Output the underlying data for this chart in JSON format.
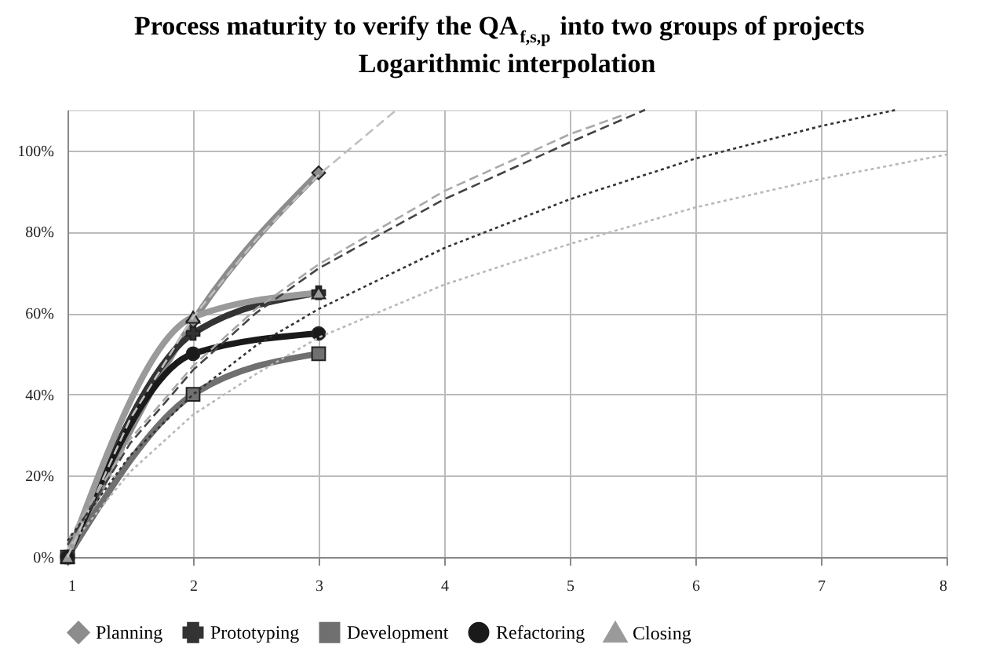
{
  "chart_data": {
    "type": "line",
    "title": "Process maturity to verify the QA$_{f,s,p}$ into two groups of projects",
    "subtitle": "Logarithmic interpolation",
    "x": [
      1,
      2,
      3
    ],
    "xlim": [
      1,
      8
    ],
    "xticks": [
      1,
      2,
      3,
      4,
      5,
      6,
      7,
      8
    ],
    "ylim": [
      0,
      110
    ],
    "yticks": [
      {
        "value": 0,
        "label": "0%"
      },
      {
        "value": 20,
        "label": "20%"
      },
      {
        "value": 40,
        "label": "40%"
      },
      {
        "value": 60,
        "label": "60%"
      },
      {
        "value": 80,
        "label": "80%"
      },
      {
        "value": 100,
        "label": "100%"
      }
    ],
    "grid": true,
    "legend": "bottom",
    "line_style": "solid",
    "series": [
      {
        "name": "Planning",
        "color": "#8c8c8c",
        "marker": "diamond",
        "values": [
          0,
          58,
          94.5
        ]
      },
      {
        "name": "Prototyping",
        "color": "#333333",
        "marker": "cross",
        "values": [
          0,
          55,
          65
        ]
      },
      {
        "name": "Development",
        "color": "#707070",
        "marker": "square",
        "values": [
          0,
          40,
          50
        ]
      },
      {
        "name": "Refactoring",
        "color": "#1a1a1a",
        "marker": "circle",
        "values": [
          0,
          50,
          55
        ]
      },
      {
        "name": "Closing",
        "color": "#9a9a9a",
        "marker": "triangle",
        "values": [
          0,
          59,
          65
        ]
      },
      {
        "type": "line",
        "color": "#c0c0c0",
        "line_style": "dashed",
        "x": [
          1,
          1.5,
          2,
          2.5,
          3,
          3.62
        ],
        "values": [
          0,
          34,
          59,
          78,
          94,
          110
        ]
      },
      {
        "type": "line",
        "color": "#444444",
        "line_style": "dashed",
        "x": [
          1,
          1.5,
          2,
          2.5,
          3,
          4,
          5,
          5.6
        ],
        "values": [
          3,
          28,
          46,
          60,
          71,
          88,
          102,
          110
        ]
      },
      {
        "type": "line",
        "color": "#a8a8a8",
        "line_style": "dashed",
        "x": [
          1,
          1.5,
          2,
          2.5,
          3,
          4,
          5,
          5.45
        ],
        "values": [
          4,
          29,
          47,
          61,
          72,
          90,
          104,
          109
        ]
      },
      {
        "type": "line",
        "color": "#333333",
        "line_style": "dotted",
        "x": [
          1,
          1.5,
          2,
          2.5,
          3,
          4,
          5,
          6,
          7,
          7.6
        ],
        "values": [
          4,
          25,
          40,
          52,
          61,
          76,
          88,
          98,
          106,
          110
        ]
      },
      {
        "type": "line",
        "color": "#b8b8b8",
        "line_style": "dotted",
        "x": [
          1,
          1.5,
          2,
          2.5,
          3,
          4,
          5,
          6,
          7,
          8
        ],
        "values": [
          2,
          21,
          35,
          45,
          54,
          67,
          77,
          86,
          93,
          99
        ]
      }
    ]
  }
}
